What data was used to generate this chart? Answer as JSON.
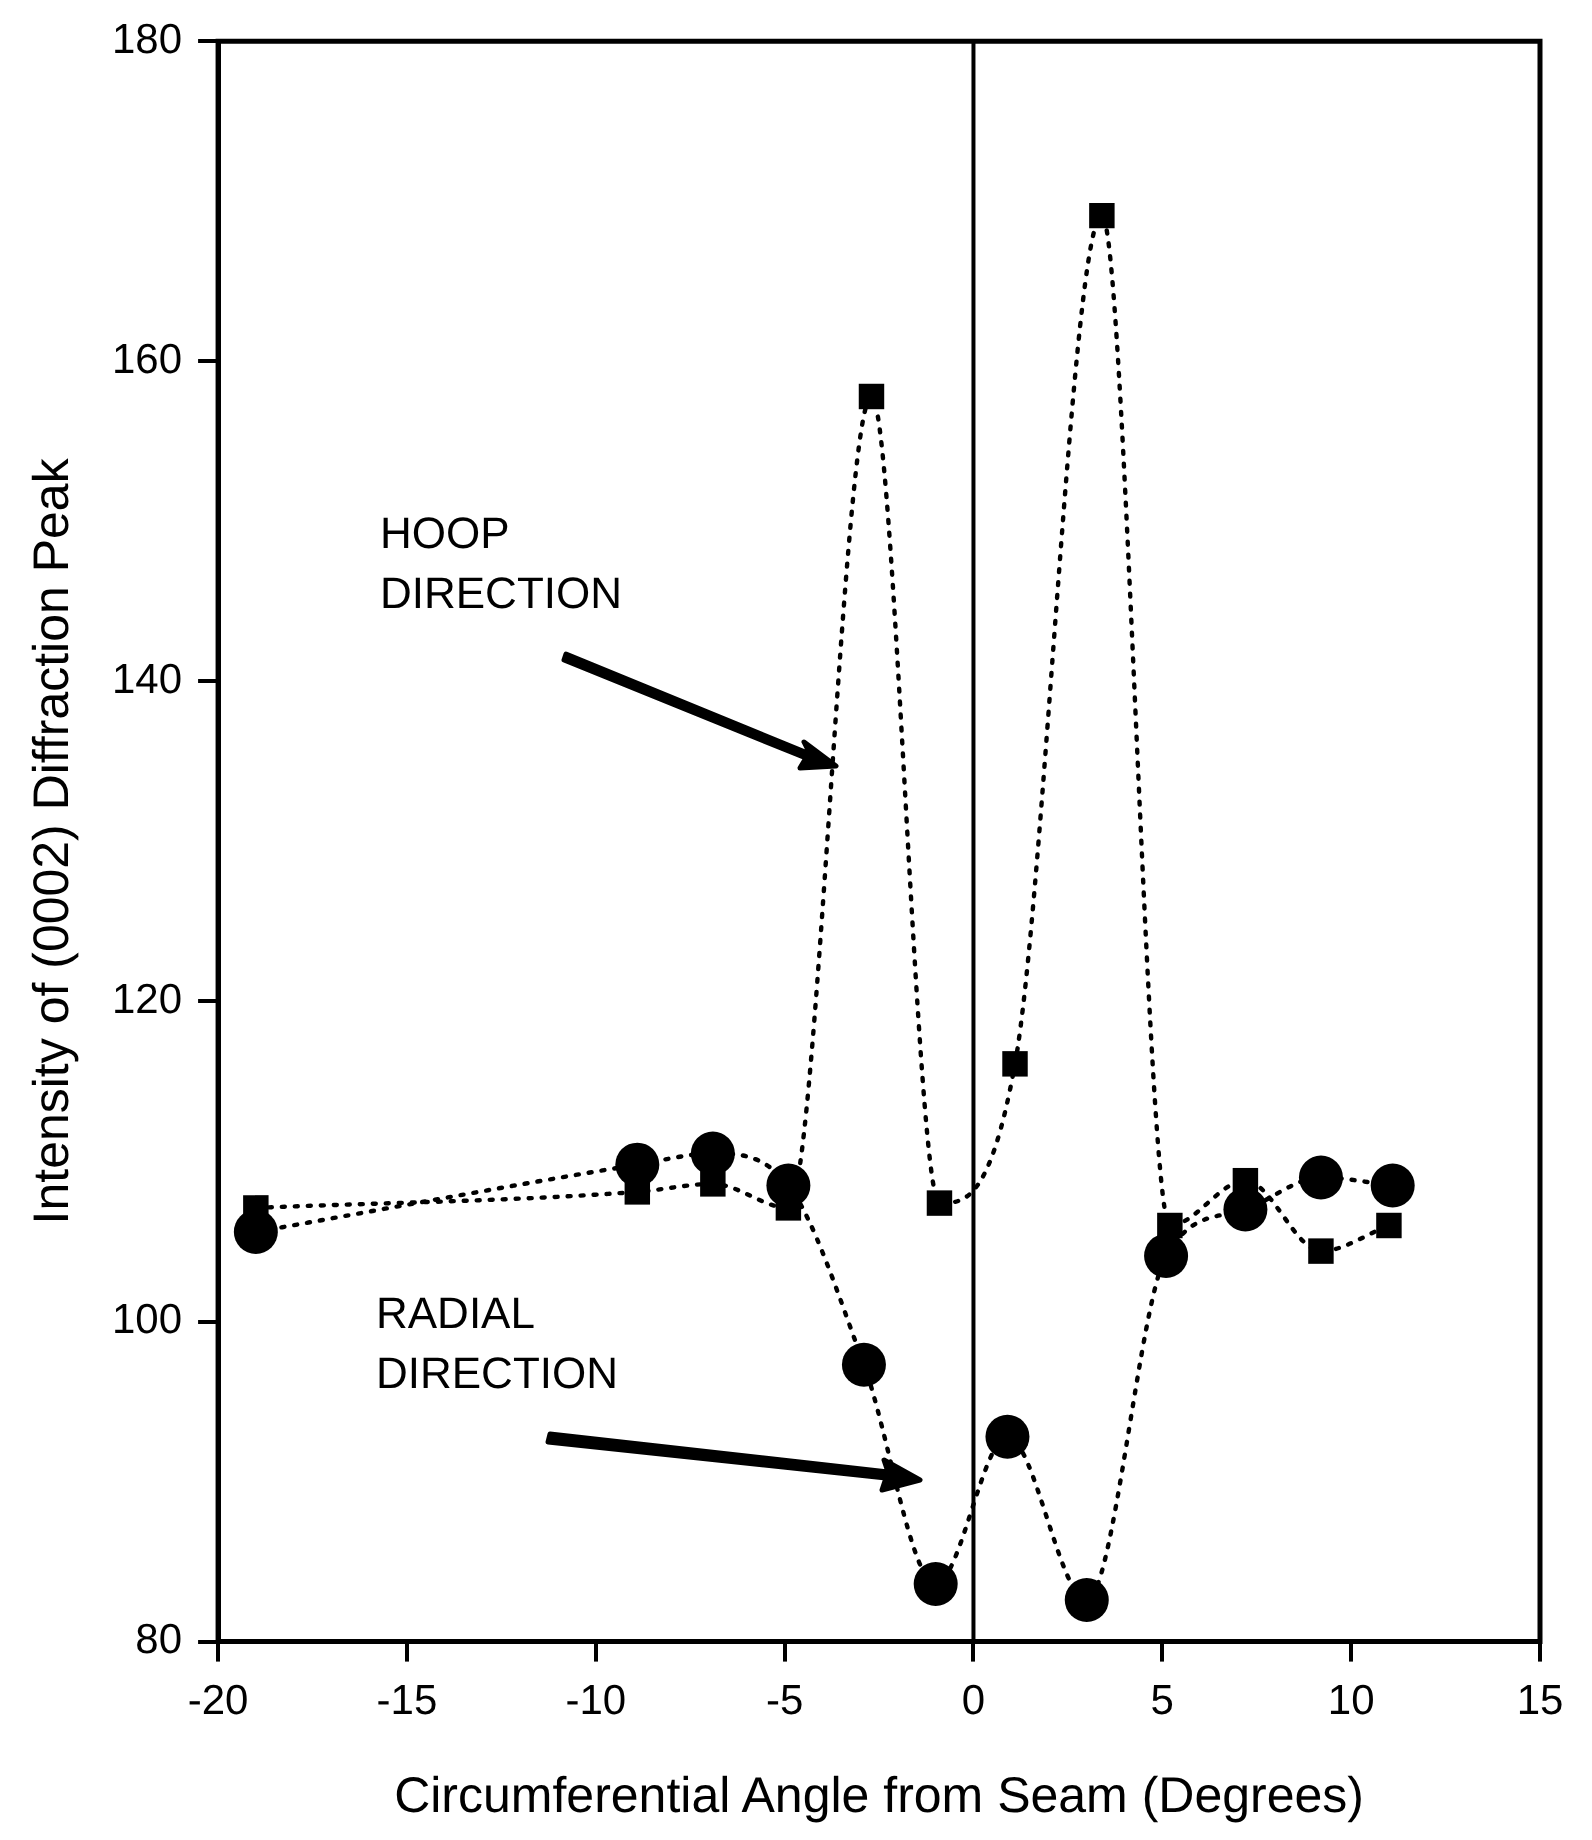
{
  "chart_data": {
    "type": "line",
    "xlabel": "Circumferential Angle from Seam (Degrees)",
    "ylabel": "Intensity of (0002) Diffraction Peak",
    "xlim": [
      -20,
      15
    ],
    "xticks": [
      -20,
      -15,
      -10,
      -5,
      0,
      5,
      10,
      15
    ],
    "ylim": [
      80,
      180
    ],
    "yticks": [
      80,
      100,
      120,
      140,
      160,
      180
    ],
    "grid": false,
    "legend": false,
    "line_style": "dotted",
    "series": [
      {
        "color": "#000000",
        "marker": "square",
        "x": [
          -19.0,
          -8.9,
          -6.9,
          -4.9,
          -2.7,
          -0.9,
          1.1,
          3.4,
          5.2,
          7.2,
          9.2,
          11.0
        ],
        "values": [
          107.1,
          108.1,
          108.6,
          107.1,
          157.8,
          107.4,
          116.1,
          169.1,
          106.0,
          108.8,
          104.4,
          106.0
        ]
      },
      {
        "color": "#000000",
        "marker": "circle",
        "x": [
          -19.0,
          -8.9,
          -6.9,
          -4.9,
          -2.9,
          -1.0,
          0.9,
          3.0,
          5.1,
          7.2,
          9.2,
          11.1
        ],
        "values": [
          105.6,
          109.8,
          110.5,
          108.5,
          97.3,
          83.6,
          92.8,
          82.6,
          104.1,
          107.0,
          109.0,
          108.5
        ]
      }
    ],
    "ref_lines": [
      {
        "axis": "x",
        "value": 0,
        "color": "#000000",
        "line_style": "solid"
      }
    ],
    "annotations": [
      "HOOP DIRECTION",
      "RADIAL DIRECTION"
    ]
  }
}
